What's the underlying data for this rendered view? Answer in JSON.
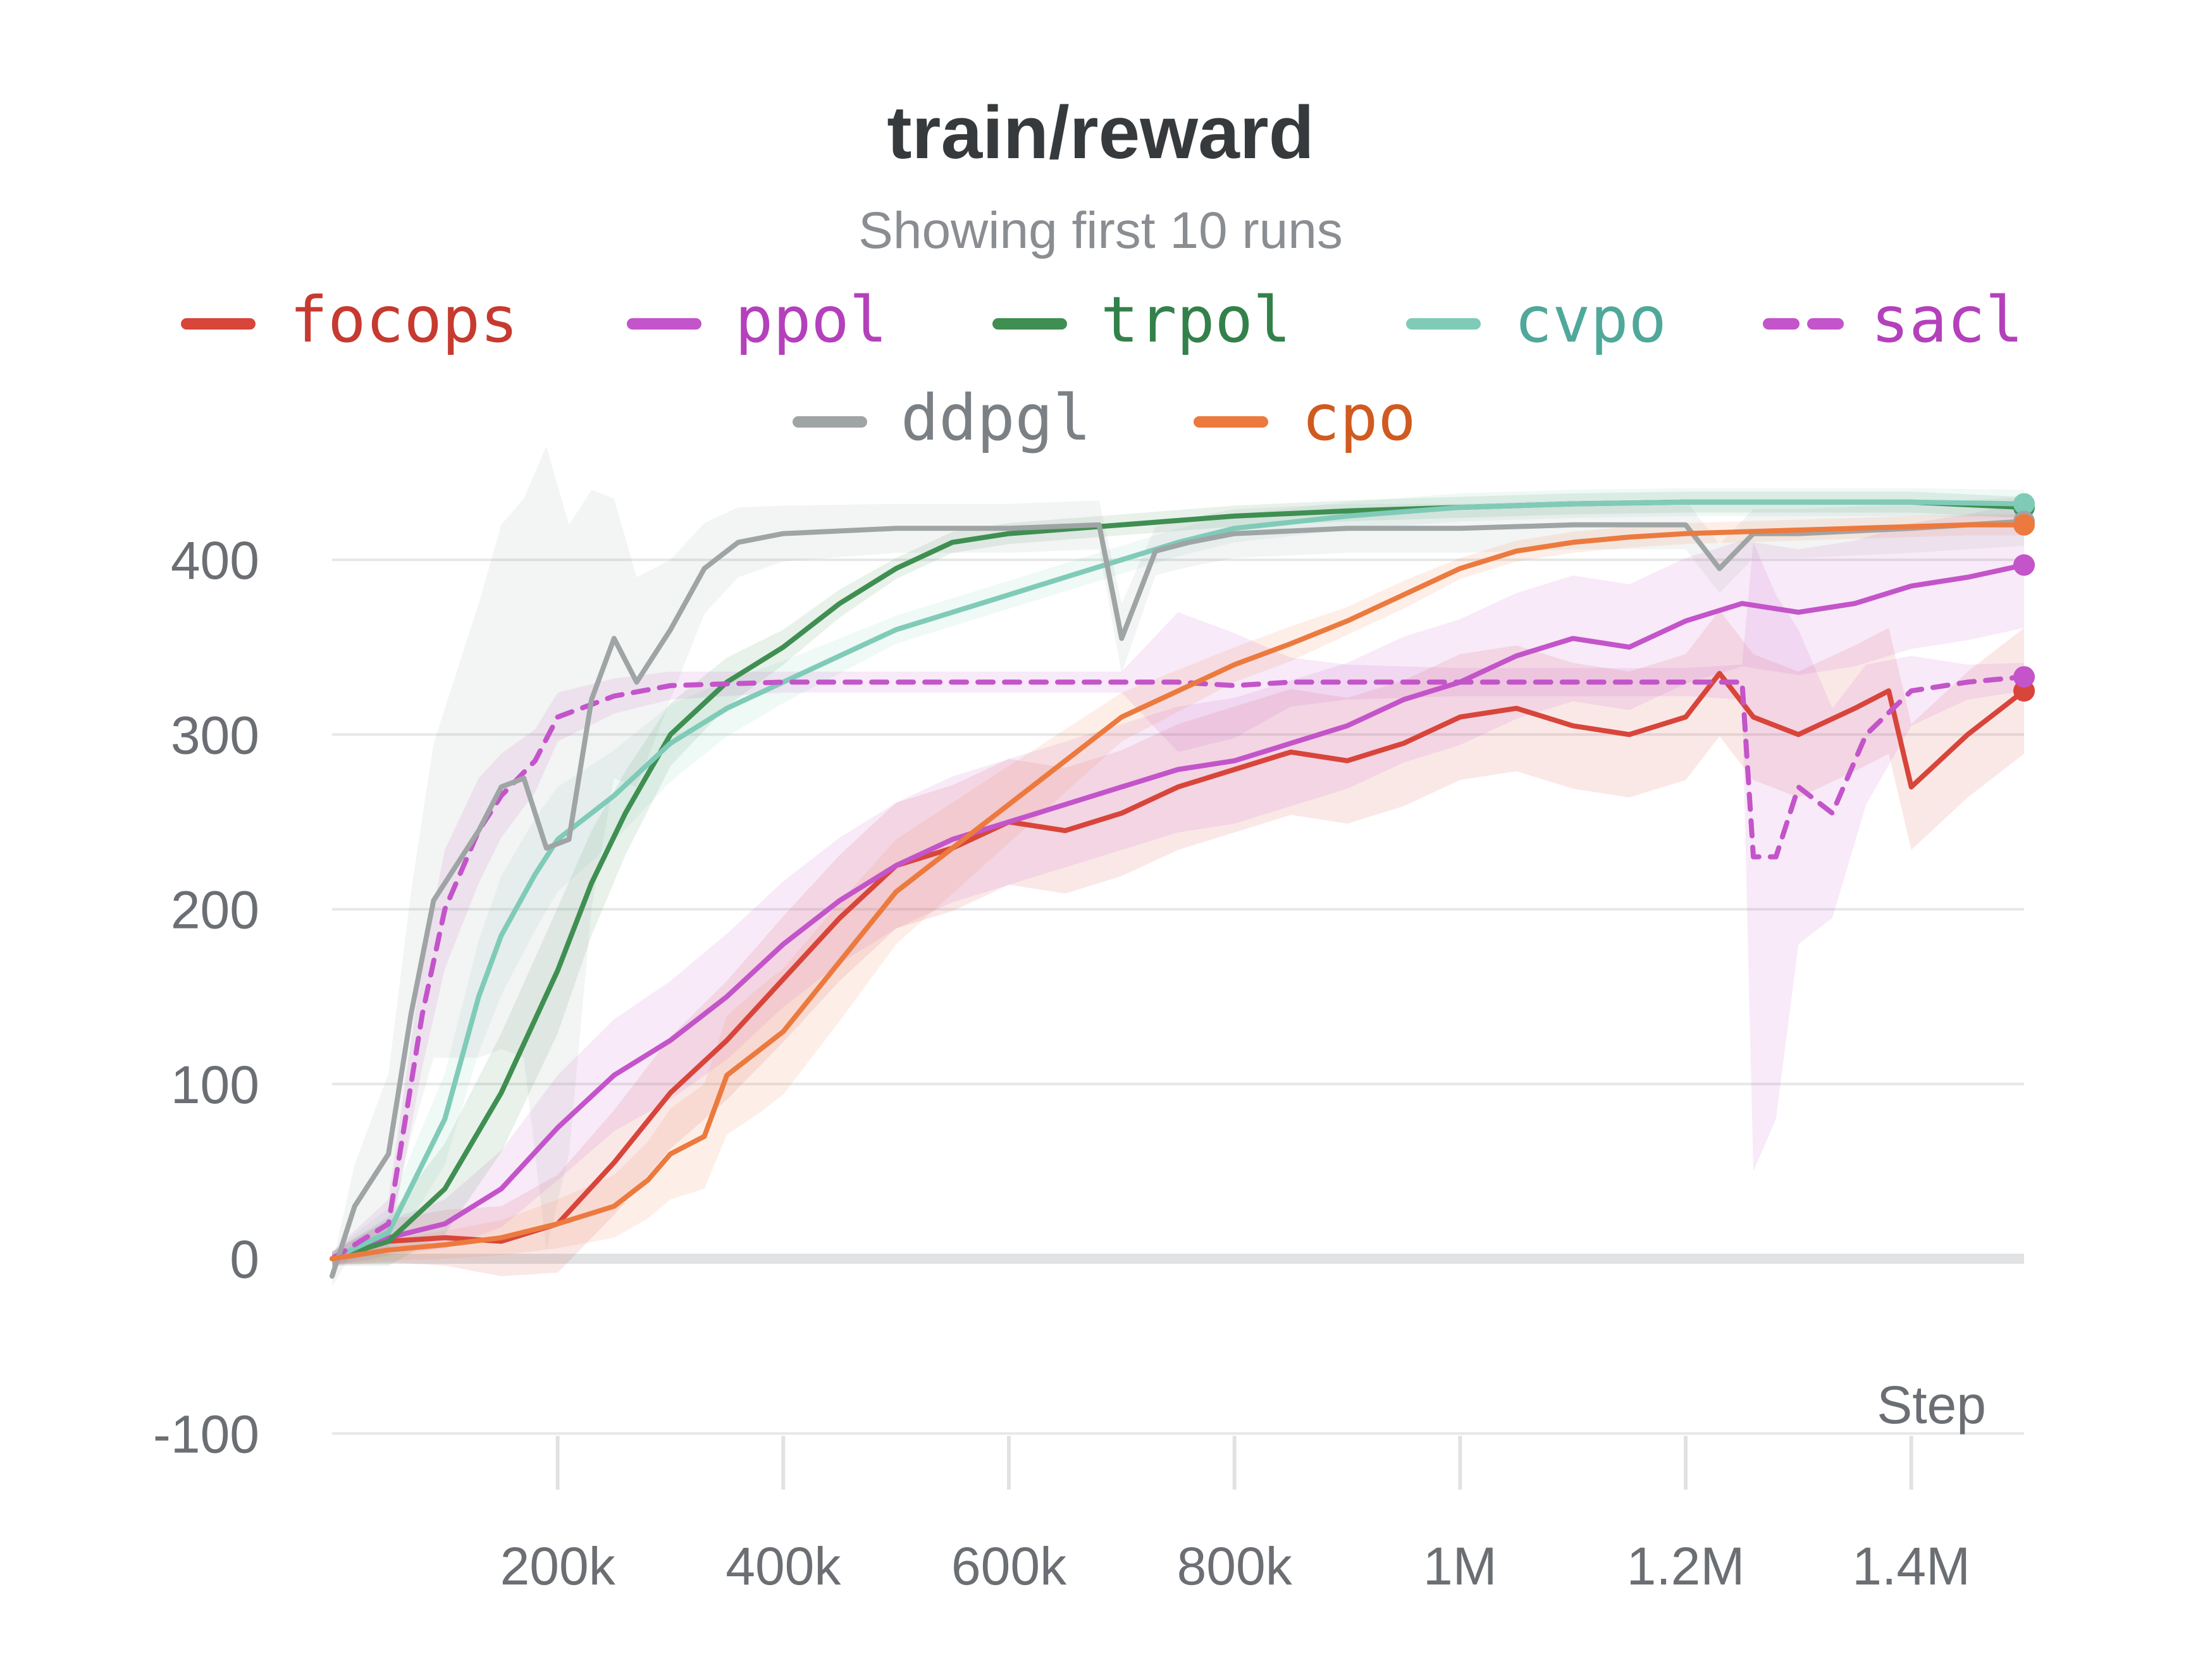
{
  "chart_data": {
    "type": "line",
    "title": "train/reward",
    "subtitle": "Showing first 10 runs",
    "xlabel": "Step",
    "ylabel": "",
    "xlim": [
      0,
      1500000
    ],
    "ylim": [
      -130,
      440
    ],
    "y_ticks": [
      -100,
      0,
      100,
      200,
      300,
      400
    ],
    "y_tick_labels": [
      "-100",
      "0",
      "100",
      "200",
      "300",
      "400"
    ],
    "x_ticks": [
      200000,
      400000,
      600000,
      800000,
      1000000,
      1200000,
      1400000
    ],
    "x_tick_labels": [
      "200k",
      "400k",
      "600k",
      "800k",
      "1M",
      "1.2M",
      "1.4M"
    ],
    "grid": true,
    "legend_position": "top",
    "series": [
      {
        "name": "focops",
        "color": "#d8453a",
        "text_color": "#c63a30",
        "dashed": false,
        "x": [
          0,
          50000,
          100000,
          150000,
          200000,
          250000,
          300000,
          350000,
          400000,
          450000,
          500000,
          550000,
          600000,
          650000,
          700000,
          750000,
          800000,
          850000,
          900000,
          950000,
          1000000,
          1050000,
          1100000,
          1150000,
          1200000,
          1230000,
          1260000,
          1300000,
          1350000,
          1380000,
          1400000,
          1450000,
          1500000
        ],
        "y": [
          0,
          10,
          12,
          10,
          20,
          55,
          95,
          125,
          160,
          195,
          225,
          235,
          250,
          245,
          255,
          270,
          280,
          290,
          285,
          295,
          310,
          315,
          305,
          300,
          310,
          335,
          310,
          300,
          315,
          325,
          270,
          300,
          325
        ],
        "band": [
          4,
          12,
          16,
          20,
          28,
          30,
          32,
          34,
          36,
          36,
          36,
          36,
          36,
          36,
          36,
          36,
          36,
          36,
          36,
          36,
          36,
          36,
          36,
          36,
          36,
          36,
          36,
          36,
          36,
          36,
          36,
          36,
          36
        ]
      },
      {
        "name": "ppol",
        "color": "#c354c9",
        "text_color": "#b440bb",
        "dashed": false,
        "x": [
          0,
          50000,
          100000,
          150000,
          200000,
          250000,
          300000,
          350000,
          400000,
          450000,
          500000,
          550000,
          600000,
          650000,
          700000,
          750000,
          800000,
          850000,
          900000,
          950000,
          1000000,
          1050000,
          1100000,
          1150000,
          1200000,
          1250000,
          1300000,
          1350000,
          1400000,
          1450000,
          1500000
        ],
        "y": [
          0,
          12,
          20,
          40,
          75,
          105,
          125,
          150,
          180,
          205,
          225,
          240,
          250,
          260,
          270,
          280,
          285,
          295,
          305,
          320,
          330,
          345,
          355,
          350,
          365,
          375,
          370,
          375,
          385,
          390,
          397
        ],
        "band": [
          4,
          10,
          14,
          22,
          30,
          32,
          34,
          36,
          36,
          36,
          36,
          36,
          36,
          36,
          36,
          36,
          36,
          36,
          36,
          36,
          36,
          36,
          36,
          36,
          36,
          36,
          36,
          36,
          36,
          36,
          36
        ]
      },
      {
        "name": "trpol",
        "color": "#3f8f52",
        "text_color": "#33814a",
        "dashed": false,
        "x": [
          0,
          50000,
          100000,
          150000,
          200000,
          230000,
          260000,
          300000,
          350000,
          400000,
          450000,
          500000,
          550000,
          600000,
          700000,
          800000,
          900000,
          1000000,
          1100000,
          1200000,
          1300000,
          1400000,
          1500000
        ],
        "y": [
          0,
          10,
          40,
          95,
          165,
          215,
          255,
          300,
          330,
          350,
          375,
          395,
          410,
          415,
          420,
          425,
          428,
          430,
          432,
          433,
          433,
          433,
          430
        ],
        "band": [
          4,
          14,
          26,
          34,
          36,
          30,
          24,
          18,
          14,
          10,
          8,
          6,
          6,
          6,
          6,
          6,
          6,
          6,
          6,
          6,
          6,
          6,
          6
        ]
      },
      {
        "name": "cvpo",
        "color": "#7fcbb8",
        "text_color": "#4fa89a",
        "dashed": false,
        "x": [
          0,
          50000,
          100000,
          130000,
          150000,
          180000,
          200000,
          250000,
          300000,
          350000,
          400000,
          450000,
          500000,
          550000,
          600000,
          650000,
          700000,
          750000,
          800000,
          900000,
          1000000,
          1100000,
          1200000,
          1300000,
          1400000,
          1500000
        ],
        "y": [
          0,
          15,
          80,
          150,
          185,
          220,
          240,
          265,
          295,
          315,
          330,
          345,
          360,
          370,
          380,
          390,
          400,
          410,
          418,
          425,
          430,
          432,
          433,
          433,
          433,
          432
        ],
        "band": [
          4,
          14,
          26,
          32,
          34,
          32,
          30,
          26,
          22,
          16,
          12,
          10,
          8,
          8,
          8,
          8,
          8,
          8,
          8,
          8,
          8,
          8,
          8,
          8,
          8,
          8
        ]
      },
      {
        "name": "sacl",
        "color": "#c354c9",
        "text_color": "#b440bb",
        "dashed": true,
        "x": [
          0,
          50000,
          80000,
          100000,
          130000,
          150000,
          180000,
          200000,
          250000,
          300000,
          400000,
          500000,
          600000,
          700000,
          750000,
          800000,
          850000,
          900000,
          1000000,
          1100000,
          1200000,
          1250000,
          1260000,
          1280000,
          1300000,
          1330000,
          1360000,
          1400000,
          1450000,
          1500000
        ],
        "y": [
          0,
          20,
          140,
          200,
          245,
          265,
          285,
          310,
          322,
          328,
          330,
          330,
          330,
          330,
          330,
          328,
          330,
          330,
          330,
          330,
          330,
          330,
          230,
          230,
          270,
          255,
          300,
          325,
          330,
          333
        ],
        "band": [
          4,
          14,
          30,
          34,
          30,
          24,
          18,
          14,
          10,
          8,
          6,
          6,
          6,
          6,
          40,
          30,
          14,
          10,
          8,
          8,
          8,
          10,
          180,
          150,
          90,
          60,
          40,
          20,
          10,
          8
        ]
      },
      {
        "name": "ddpgl",
        "color": "#9fa4a5",
        "text_color": "#7b8085",
        "dashed": false,
        "x": [
          0,
          20000,
          50000,
          70000,
          90000,
          110000,
          130000,
          150000,
          170000,
          190000,
          210000,
          230000,
          250000,
          270000,
          300000,
          330000,
          360000,
          400000,
          500000,
          600000,
          680000,
          700000,
          730000,
          760000,
          800000,
          900000,
          1000000,
          1100000,
          1200000,
          1230000,
          1260000,
          1300000,
          1400000,
          1500000
        ],
        "y": [
          -10,
          30,
          60,
          140,
          205,
          225,
          245,
          270,
          275,
          235,
          240,
          320,
          355,
          330,
          360,
          395,
          410,
          415,
          418,
          418,
          420,
          355,
          405,
          410,
          415,
          418,
          418,
          420,
          420,
          395,
          415,
          415,
          418,
          422
        ],
        "band": [
          6,
          24,
          46,
          70,
          90,
          110,
          130,
          150,
          160,
          230,
          180,
          120,
          80,
          60,
          40,
          26,
          20,
          16,
          14,
          14,
          14,
          20,
          14,
          14,
          14,
          14,
          14,
          14,
          14,
          14,
          14,
          14,
          14,
          14
        ]
      },
      {
        "name": "cpo",
        "color": "#ec7a3e",
        "text_color": "#d05a1f",
        "dashed": false,
        "x": [
          0,
          50000,
          100000,
          150000,
          200000,
          250000,
          280000,
          300000,
          330000,
          350000,
          380000,
          400000,
          450000,
          500000,
          550000,
          600000,
          650000,
          700000,
          750000,
          800000,
          850000,
          900000,
          950000,
          1000000,
          1050000,
          1100000,
          1150000,
          1200000,
          1250000,
          1300000,
          1350000,
          1400000,
          1450000,
          1500000
        ],
        "y": [
          0,
          5,
          8,
          12,
          20,
          30,
          45,
          60,
          70,
          105,
          120,
          130,
          170,
          210,
          235,
          260,
          285,
          310,
          325,
          340,
          352,
          365,
          380,
          395,
          405,
          410,
          413,
          415,
          416,
          417,
          418,
          419,
          420,
          420
        ],
        "band": [
          3,
          6,
          8,
          10,
          14,
          18,
          22,
          26,
          30,
          34,
          36,
          36,
          34,
          30,
          26,
          22,
          18,
          14,
          12,
          10,
          10,
          8,
          8,
          6,
          6,
          6,
          6,
          6,
          6,
          6,
          6,
          6,
          6,
          6
        ]
      }
    ]
  }
}
